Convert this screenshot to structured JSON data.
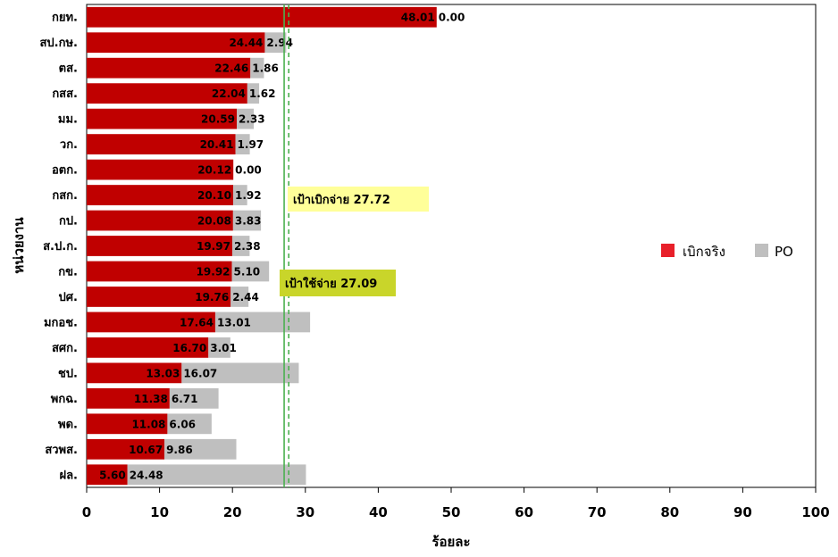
{
  "chart_data": {
    "type": "bar",
    "orientation": "horizontal",
    "stacked": true,
    "categories": [
      "กยท.",
      "สป.กษ.",
      "ตส.",
      "กสส.",
      "มม.",
      "วก.",
      "อตก.",
      "กสก.",
      "กป.",
      "ส.ป.ก.",
      "กข.",
      "ปศ.",
      "มกอช.",
      "สศก.",
      "ชป.",
      "พกฉ.",
      "พด.",
      "สวพส.",
      "ฝล."
    ],
    "series": [
      {
        "name": "เบิกจริง",
        "color": "#C00000",
        "values": [
          48.01,
          24.44,
          22.46,
          22.04,
          20.59,
          20.41,
          20.12,
          20.1,
          20.08,
          19.97,
          19.92,
          19.76,
          17.64,
          16.7,
          13.03,
          11.38,
          11.08,
          10.67,
          5.6
        ],
        "labels": [
          "48.01",
          "24.44",
          "22.46",
          "22.04",
          "20.59",
          "20.41",
          "20.12",
          "20.10",
          "20.08",
          "19.97",
          "19.92",
          "19.76",
          "17.64",
          "16.70",
          "13.03",
          "11.38",
          "11.08",
          "10.67",
          "5.60"
        ]
      },
      {
        "name": "PO",
        "color": "#BFBFBF",
        "values": [
          0.0,
          2.94,
          1.86,
          1.62,
          2.33,
          1.97,
          0.0,
          1.92,
          3.83,
          2.38,
          5.1,
          2.44,
          13.01,
          3.01,
          16.07,
          6.71,
          6.06,
          9.86,
          24.48
        ],
        "labels": [
          "0.00",
          "2.94",
          "1.86",
          "1.62",
          "2.33",
          "1.97",
          "0.00",
          "1.92",
          "3.83",
          "2.38",
          "5.10",
          "2.44",
          "13.01",
          "3.01",
          "16.07",
          "6.71",
          "6.06",
          "9.86",
          "24.48"
        ]
      }
    ],
    "xlabel": "ร้อยละ",
    "ylabel": "หน่วยงาน",
    "xlim": [
      0,
      100
    ],
    "xticks": [
      0,
      10,
      20,
      30,
      40,
      50,
      60,
      70,
      80,
      90,
      100
    ],
    "xtick_labels": [
      "0",
      "10",
      "20",
      "30",
      "40",
      "50",
      "60",
      "70",
      "80",
      "90",
      "100"
    ],
    "grid": false,
    "legend_position": "right",
    "reference_lines": [
      {
        "value": 27.72,
        "label": "เป้าเบิกจ่าย 27.72",
        "style": "dashed",
        "color": "#4CB050",
        "label_bg": "#FFFF99"
      },
      {
        "value": 27.09,
        "label": "เป้าใช้จ่าย 27.09",
        "style": "solid",
        "color": "#4CB050",
        "label_bg": "#C9D52A"
      }
    ]
  }
}
